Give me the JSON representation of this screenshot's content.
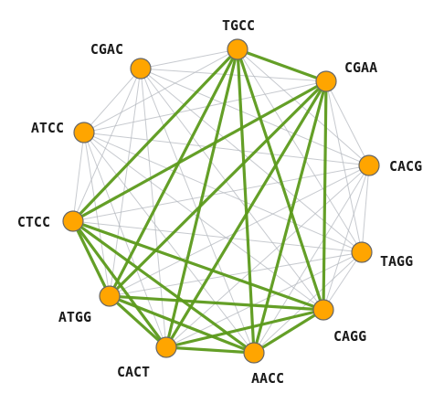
{
  "graph": {
    "node_color": "#ffa500",
    "light_edge_color": "#b4b8bf",
    "strong_edge_color": "#5c9a1b",
    "nodes": [
      {
        "id": "TGCC",
        "label": "TGCC"
      },
      {
        "id": "CGAA",
        "label": "CGAA"
      },
      {
        "id": "CACG",
        "label": "CACG"
      },
      {
        "id": "TAGG",
        "label": "TAGG"
      },
      {
        "id": "CAGG",
        "label": "CAGG"
      },
      {
        "id": "AACC",
        "label": "AACC"
      },
      {
        "id": "CACT",
        "label": "CACT"
      },
      {
        "id": "ATGG",
        "label": "ATGG"
      },
      {
        "id": "CTCC",
        "label": "CTCC"
      },
      {
        "id": "ATCC",
        "label": "ATCC"
      },
      {
        "id": "CGAC",
        "label": "CGAC"
      }
    ],
    "strong_edges": [
      [
        "TGCC",
        "CGAA"
      ],
      [
        "TGCC",
        "CTCC"
      ],
      [
        "TGCC",
        "ATGG"
      ],
      [
        "TGCC",
        "CACT"
      ],
      [
        "TGCC",
        "AACC"
      ],
      [
        "TGCC",
        "CAGG"
      ],
      [
        "CGAA",
        "CTCC"
      ],
      [
        "CGAA",
        "ATGG"
      ],
      [
        "CGAA",
        "CACT"
      ],
      [
        "CGAA",
        "AACC"
      ],
      [
        "CGAA",
        "CAGG"
      ],
      [
        "CTCC",
        "ATGG"
      ],
      [
        "CTCC",
        "CACT"
      ],
      [
        "CTCC",
        "AACC"
      ],
      [
        "CTCC",
        "CAGG"
      ],
      [
        "ATGG",
        "CACT"
      ],
      [
        "ATGG",
        "AACC"
      ],
      [
        "ATGG",
        "CAGG"
      ],
      [
        "CACT",
        "AACC"
      ],
      [
        "CACT",
        "CAGG"
      ],
      [
        "AACC",
        "CAGG"
      ]
    ]
  }
}
